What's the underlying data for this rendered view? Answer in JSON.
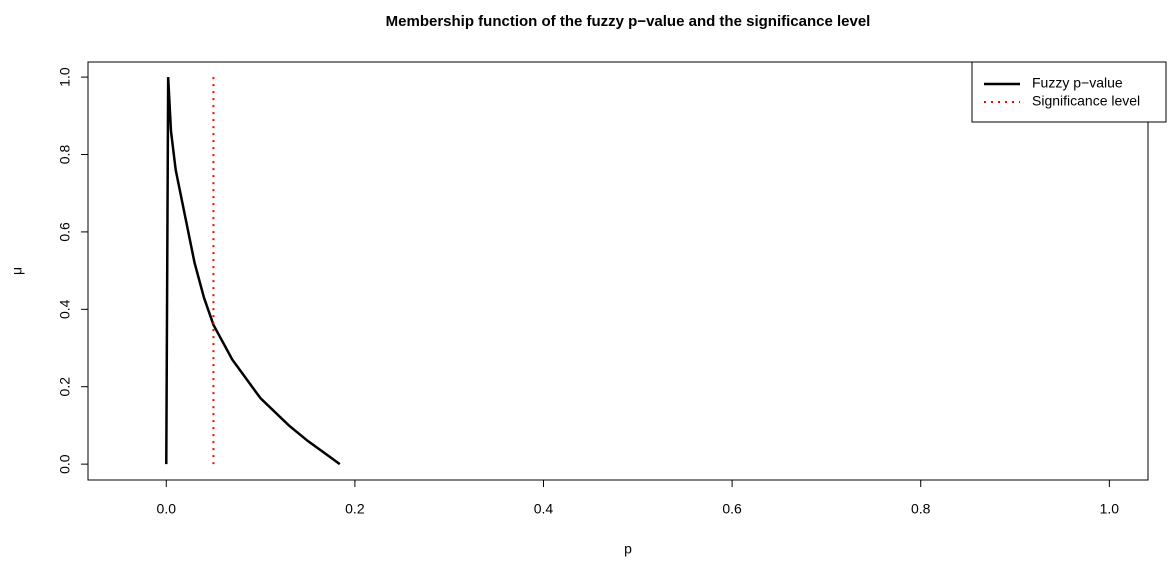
{
  "chart_data": {
    "type": "line",
    "title": "Membership function of the fuzzy p−value and the significance level",
    "x_label": "p",
    "y_label": "μ",
    "xlim": [
      -0.083,
      1.041
    ],
    "ylim": [
      -0.041,
      1.039
    ],
    "xticks": [
      {
        "value": 0,
        "label": "0.0"
      },
      {
        "value": 0.2,
        "label": "0.2"
      },
      {
        "value": 0.4,
        "label": "0.4"
      },
      {
        "value": 0.6,
        "label": "0.6"
      },
      {
        "value": 0.8,
        "label": "0.8"
      },
      {
        "value": 1,
        "label": "1.0"
      }
    ],
    "yticks": [
      {
        "value": 0,
        "label": "0.0"
      },
      {
        "value": 0.2,
        "label": "0.2"
      },
      {
        "value": 0.4,
        "label": "0.4"
      },
      {
        "value": 0.6,
        "label": "0.6"
      },
      {
        "value": 0.8,
        "label": "0.8"
      },
      {
        "value": 1,
        "label": "1.0"
      }
    ],
    "legend": "top-right",
    "series": [
      {
        "name": "Fuzzy p−value",
        "color": "#000000",
        "style": "solid",
        "x": [
          0,
          0.002,
          0.005,
          0.01,
          0.02,
          0.03,
          0.04,
          0.05,
          0.07,
          0.1,
          0.13,
          0.15,
          0.17,
          0.184
        ],
        "values": [
          0,
          1,
          0.86,
          0.76,
          0.64,
          0.52,
          0.43,
          0.36,
          0.27,
          0.17,
          0.1,
          0.06,
          0.025,
          0
        ]
      },
      {
        "name": "Significance level",
        "color": "#ff0000",
        "style": "dotted",
        "x": [
          0.05,
          0.05
        ],
        "values": [
          0,
          1
        ]
      }
    ]
  }
}
